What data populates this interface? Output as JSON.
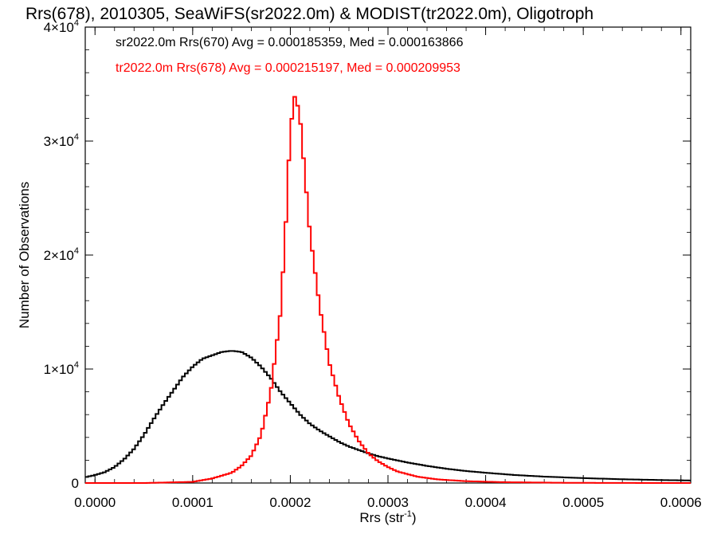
{
  "chart_data": {
    "type": "line",
    "step": true,
    "title": "Rrs(678), 2010305, SeaWiFS(sr2022.0m) & MODIST(tr2022.0m), Oligotroph",
    "xlabel": "Rrs (str",
    "xlabel_exp": "-1",
    "xlabel_end": ")",
    "ylabel": "Number of Observations",
    "xlim": [
      -1e-05,
      0.00061
    ],
    "ylim": [
      0,
      40000
    ],
    "x_ticks": [
      0.0,
      0.0001,
      0.0002,
      0.0003,
      0.0004,
      0.0005,
      0.0006
    ],
    "x_tick_labels": [
      "0.0000",
      "0.0001",
      "0.0002",
      "0.0003",
      "0.0004",
      "0.0005",
      "0.0006"
    ],
    "y_ticks": [
      {
        "value": 0,
        "mant": "0",
        "exp": ""
      },
      {
        "value": 10000,
        "mant": "1×10",
        "exp": "4"
      },
      {
        "value": 20000,
        "mant": "2×10",
        "exp": "4"
      },
      {
        "value": 30000,
        "mant": "3×10",
        "exp": "4"
      },
      {
        "value": 40000,
        "mant": "4×10",
        "exp": "4"
      }
    ],
    "legend": [
      {
        "text": "sr2022.0m Rrs(670) Avg = 0.000185359, Med = 0.000163866",
        "color": "#000000"
      },
      {
        "text": "tr2022.0m Rrs(678) Avg = 0.000215197, Med = 0.000209953",
        "color": "#ff0000"
      }
    ],
    "series": [
      {
        "color": "#000000",
        "points": [
          [
            -1e-05,
            500
          ],
          [
            0.0,
            700
          ],
          [
            1e-05,
            950
          ],
          [
            2e-05,
            1400
          ],
          [
            3e-05,
            2100
          ],
          [
            4e-05,
            3000
          ],
          [
            5e-05,
            4200
          ],
          [
            6e-05,
            5600
          ],
          [
            7e-05,
            6900
          ],
          [
            8e-05,
            8100
          ],
          [
            9e-05,
            9300
          ],
          [
            0.0001,
            10200
          ],
          [
            0.00011,
            10900
          ],
          [
            0.00012,
            11200
          ],
          [
            0.00013,
            11500
          ],
          [
            0.00014,
            11600
          ],
          [
            0.00015,
            11500
          ],
          [
            0.00016,
            11000
          ],
          [
            0.00017,
            10200
          ],
          [
            0.00018,
            9200
          ],
          [
            0.00019,
            8000
          ],
          [
            0.0002,
            7000
          ],
          [
            0.00021,
            6000
          ],
          [
            0.00022,
            5200
          ],
          [
            0.00023,
            4600
          ],
          [
            0.00024,
            4100
          ],
          [
            0.00025,
            3600
          ],
          [
            0.00026,
            3200
          ],
          [
            0.00027,
            2900
          ],
          [
            0.00028,
            2600
          ],
          [
            0.00029,
            2350
          ],
          [
            0.0003,
            2150
          ],
          [
            0.00032,
            1800
          ],
          [
            0.00034,
            1500
          ],
          [
            0.00036,
            1250
          ],
          [
            0.00038,
            1050
          ],
          [
            0.0004,
            900
          ],
          [
            0.00043,
            700
          ],
          [
            0.00046,
            560
          ],
          [
            0.0005,
            430
          ],
          [
            0.00054,
            330
          ],
          [
            0.00058,
            260
          ],
          [
            0.00061,
            220
          ]
        ]
      },
      {
        "color": "#ff0000",
        "points": [
          [
            -1e-05,
            0
          ],
          [
            5e-05,
            0
          ],
          [
            0.0001,
            100
          ],
          [
            0.00012,
            400
          ],
          [
            0.00014,
            900
          ],
          [
            0.00015,
            1500
          ],
          [
            0.00016,
            2400
          ],
          [
            0.00017,
            4200
          ],
          [
            0.00018,
            8000
          ],
          [
            0.00019,
            15000
          ],
          [
            0.000195,
            22000
          ],
          [
            0.0002,
            31000
          ],
          [
            0.000205,
            34200
          ],
          [
            0.00021,
            32000
          ],
          [
            0.000215,
            27000
          ],
          [
            0.00022,
            22000
          ],
          [
            0.00023,
            15500
          ],
          [
            0.00024,
            10500
          ],
          [
            0.00025,
            7500
          ],
          [
            0.00026,
            5200
          ],
          [
            0.00027,
            3700
          ],
          [
            0.00028,
            2600
          ],
          [
            0.00029,
            1900
          ],
          [
            0.0003,
            1400
          ],
          [
            0.00031,
            1000
          ],
          [
            0.00033,
            560
          ],
          [
            0.00035,
            320
          ],
          [
            0.00038,
            160
          ],
          [
            0.00042,
            70
          ],
          [
            0.00048,
            20
          ],
          [
            0.00055,
            5
          ],
          [
            0.00061,
            0
          ]
        ]
      }
    ]
  }
}
